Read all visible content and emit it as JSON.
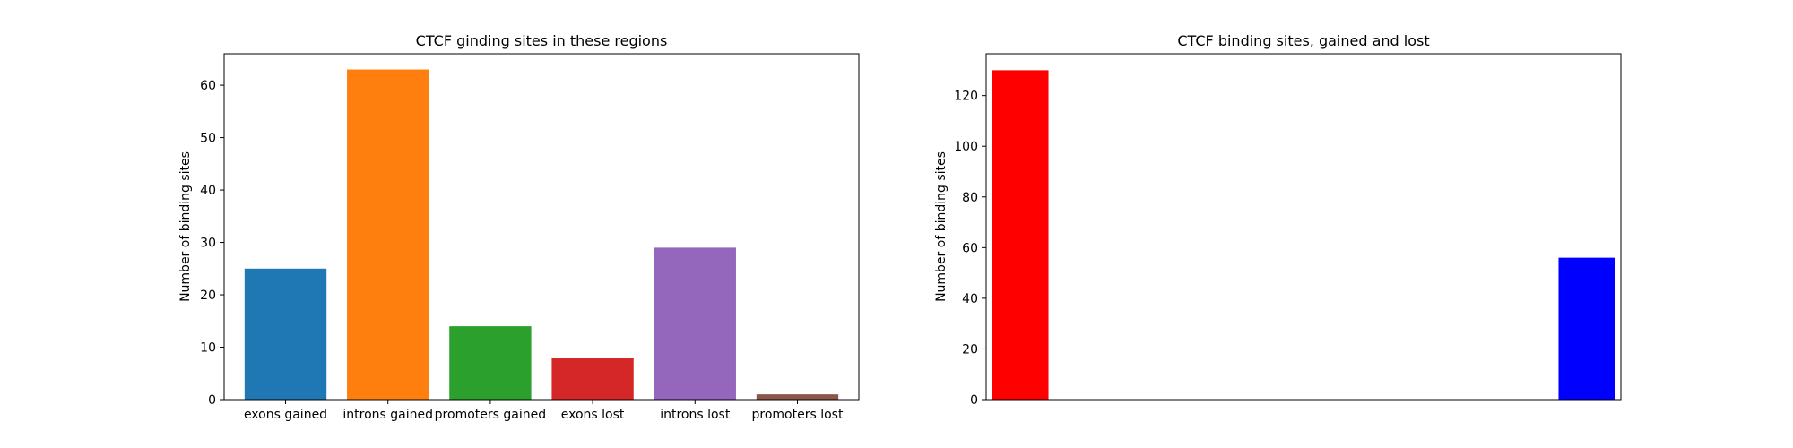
{
  "chart_data": [
    {
      "type": "bar",
      "title": "CTCF ginding sites in these regions",
      "xlabel": "",
      "ylabel": "Number of binding sites",
      "categories": [
        "exons gained",
        "introns gained",
        "promoters gained",
        "exons lost",
        "introns lost",
        "promoters lost"
      ],
      "values": [
        25,
        63,
        14,
        8,
        29,
        1
      ],
      "colors": [
        "#1f77b4",
        "#ff7f0e",
        "#2ca02c",
        "#d62728",
        "#9467bd",
        "#8c564b"
      ],
      "ylim": [
        0,
        66
      ],
      "yticks": [
        0,
        10,
        20,
        30,
        40,
        50,
        60
      ],
      "grid": false
    },
    {
      "type": "bar",
      "title": "CTCF binding sites, gained and lost",
      "xlabel": "",
      "ylabel": "Number of binding sites",
      "x": [
        0,
        1
      ],
      "categories": [
        "",
        ""
      ],
      "values": [
        130,
        56
      ],
      "colors": [
        "#ff0000",
        "#0000ff"
      ],
      "ylim": [
        0,
        136.5
      ],
      "yticks": [
        0,
        20,
        40,
        60,
        80,
        100,
        120
      ],
      "grid": false
    }
  ]
}
